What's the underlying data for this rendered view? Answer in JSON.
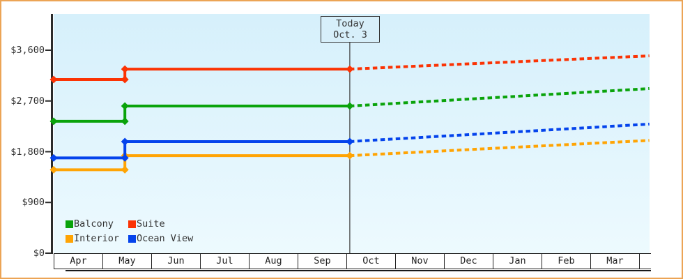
{
  "colors": {
    "frame_border": "#ECA455",
    "page_background": "#FFFFFF",
    "plot_bg_top": "#D6F0FB",
    "plot_bg_bottom": "#EDFAFE",
    "axis": "#2B2B2B",
    "text": "#333333",
    "today_line": "#444444",
    "today_box_fill": "#D7EFFA",
    "month_cell_bg": "#FFFFFF"
  },
  "chart_data": {
    "type": "line",
    "x_axis": {
      "categories": [
        "Apr",
        "May",
        "Jun",
        "Jul",
        "Aug",
        "Sep",
        "Oct",
        "Nov",
        "Dec",
        "Jan",
        "Feb",
        "Mar"
      ],
      "note": "t = months elapsed since Apr 1; plot right edge at t=12.21"
    },
    "y_axis": {
      "min": 0,
      "max": 3600,
      "tick_interval": 900,
      "ticks": [
        {
          "value": 0,
          "label": "$0"
        },
        {
          "value": 900,
          "label": "$900"
        },
        {
          "value": 1800,
          "label": "$1,800"
        },
        {
          "value": 2700,
          "label": "$2,700"
        },
        {
          "value": 3600,
          "label": "$3,600"
        }
      ]
    },
    "today_marker": {
      "line1": "Today",
      "line2": "Oct. 3",
      "t": 6.07
    },
    "forecast_style": "dotted",
    "series": [
      {
        "name": "Interior",
        "color": "#FFA404",
        "points_t_usd": [
          [
            0,
            1480
          ],
          [
            1.46,
            1480
          ],
          [
            1.46,
            1730
          ],
          [
            6.07,
            1730
          ]
        ],
        "forecast_t_usd": [
          [
            6.07,
            1730
          ],
          [
            12.21,
            2000
          ]
        ]
      },
      {
        "name": "Ocean View",
        "color": "#0443EC",
        "points_t_usd": [
          [
            0,
            1690
          ],
          [
            1.46,
            1690
          ],
          [
            1.46,
            1980
          ],
          [
            6.07,
            1980
          ]
        ],
        "forecast_t_usd": [
          [
            6.07,
            1980
          ],
          [
            12.21,
            2290
          ]
        ]
      },
      {
        "name": "Balcony",
        "color": "#0AA30B",
        "points_t_usd": [
          [
            0,
            2340
          ],
          [
            1.46,
            2340
          ],
          [
            1.46,
            2610
          ],
          [
            6.07,
            2610
          ]
        ],
        "forecast_t_usd": [
          [
            6.07,
            2610
          ],
          [
            12.21,
            2920
          ]
        ]
      },
      {
        "name": "Suite",
        "color": "#FB3304",
        "points_t_usd": [
          [
            0,
            3080
          ],
          [
            1.46,
            3080
          ],
          [
            1.46,
            3265
          ],
          [
            6.07,
            3265
          ]
        ],
        "forecast_t_usd": [
          [
            6.07,
            3265
          ],
          [
            12.21,
            3500
          ]
        ]
      }
    ],
    "legend_rows": [
      [
        "Balcony",
        "Suite"
      ],
      [
        "Interior",
        "Ocean View"
      ]
    ]
  }
}
